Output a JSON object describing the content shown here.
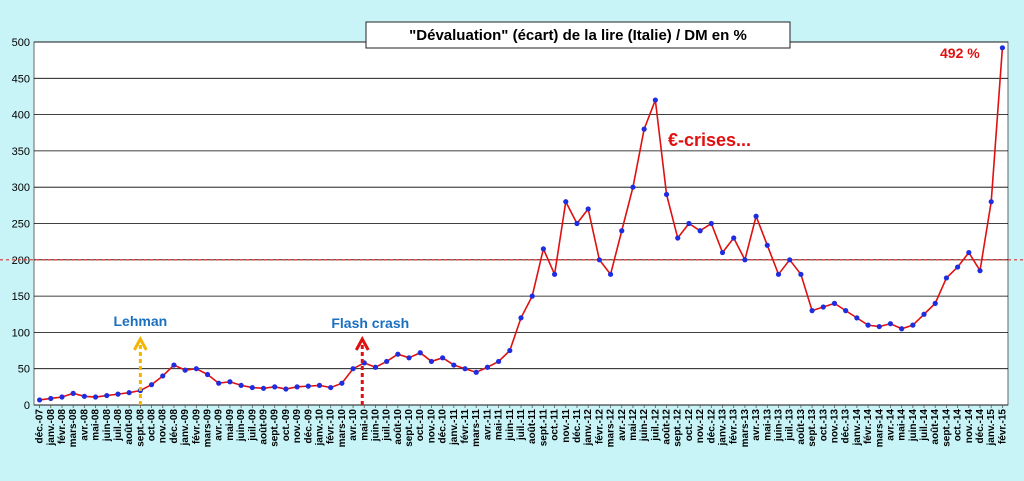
{
  "chart_data": {
    "type": "line",
    "title": "\"Dévaluation\"  (écart) de la lire (Italie)  / DM en %",
    "xlabel": "",
    "ylabel": "",
    "ylim": [
      0,
      500
    ],
    "yticks": [
      0,
      50,
      100,
      150,
      200,
      250,
      300,
      350,
      400,
      450,
      500
    ],
    "grid": true,
    "legend": "none",
    "x_tick_labels": [
      "déc.-07",
      "janv.-08",
      "févr.-08",
      "mars-08",
      "avr.-08",
      "mai-08",
      "juin-08",
      "juil.-08",
      "août-08",
      "sept.-08",
      "oct.-08",
      "nov.-08",
      "déc.-08",
      "janv.-09",
      "févr.-09",
      "mars-09",
      "avr.-09",
      "mai-09",
      "juin-09",
      "juil.-09",
      "août-09",
      "sept.-09",
      "oct.-09",
      "nov.-09",
      "déc.-09",
      "janv.-10",
      "févr.-10",
      "mars-10",
      "avr.-10",
      "mai-10",
      "juin-10",
      "juil.-10",
      "août-10",
      "sept.-10",
      "oct.-10",
      "nov.-10",
      "déc.-10",
      "janv.-11",
      "févr.-11",
      "mars-11",
      "avr.-11",
      "mai-11",
      "juin-11",
      "juil.-11",
      "août-11",
      "sept.-11",
      "oct.-11",
      "nov.-11",
      "déc.-11",
      "janv.-12",
      "févr.-12",
      "mars-12",
      "avr.-12",
      "mai-12",
      "juin-12",
      "juil.-12",
      "août-12",
      "sept.-12",
      "oct.-12",
      "nov.-12",
      "déc.-12",
      "janv.-13",
      "févr.-13",
      "mars-13",
      "avr.-13",
      "mai-13",
      "juin-13",
      "juil.-13",
      "août-13",
      "sept.-13",
      "oct.-13",
      "nov.-13",
      "déc.-13",
      "janv.-14",
      "févr.-14",
      "mars-14",
      "avr.-14",
      "mai-14",
      "juin-14",
      "juil.-14",
      "août-14",
      "sept.-14",
      "oct.-14",
      "nov.-14",
      "déc.-14",
      "janv.-15",
      "févr.-15"
    ],
    "series": [
      {
        "color": "#1f2de0",
        "line_color": "#e01010",
        "x": [
          "2007-12",
          "2008-01",
          "2008-02",
          "2008-03",
          "2008-04",
          "2008-05",
          "2008-06",
          "2008-07",
          "2008-08",
          "2008-09",
          "2008-10",
          "2008-11",
          "2008-12",
          "2009-01",
          "2009-02",
          "2009-03",
          "2009-04",
          "2009-05",
          "2009-06",
          "2009-07",
          "2009-08",
          "2009-09",
          "2009-10",
          "2009-11",
          "2009-12",
          "2010-01",
          "2010-02",
          "2010-03",
          "2010-04",
          "2010-05",
          "2010-06",
          "2010-07",
          "2010-08",
          "2010-09",
          "2010-10",
          "2010-11",
          "2010-12",
          "2011-01",
          "2011-02",
          "2011-03",
          "2011-04",
          "2011-05",
          "2011-06",
          "2011-07",
          "2011-08",
          "2011-09",
          "2011-10",
          "2011-11",
          "2011-12",
          "2012-01",
          "2012-02",
          "2012-03",
          "2012-04",
          "2012-05",
          "2012-06",
          "2012-07",
          "2012-08",
          "2012-09",
          "2012-10",
          "2012-11",
          "2012-12",
          "2013-01",
          "2013-02",
          "2013-03",
          "2013-04",
          "2013-05",
          "2013-06",
          "2013-07",
          "2013-08",
          "2013-09",
          "2013-10",
          "2013-11",
          "2013-12",
          "2014-01",
          "2014-02",
          "2014-03",
          "2014-04",
          "2014-05",
          "2014-06",
          "2014-07",
          "2014-08",
          "2014-09",
          "2014-10",
          "2014-11",
          "2014-12",
          "2015-01",
          "2015-02"
        ],
        "values": [
          7,
          9,
          11,
          16,
          12,
          11,
          13,
          15,
          17,
          20,
          28,
          40,
          55,
          48,
          50,
          42,
          30,
          32,
          27,
          24,
          23,
          25,
          22,
          25,
          26,
          27,
          24,
          30,
          50,
          58,
          52,
          60,
          70,
          65,
          72,
          60,
          65,
          55,
          50,
          45,
          52,
          60,
          75,
          120,
          150,
          215,
          180,
          280,
          250,
          270,
          200,
          180,
          240,
          300,
          380,
          420,
          290,
          230,
          250,
          240,
          250,
          210,
          230,
          200,
          260,
          220,
          180,
          200,
          180,
          130,
          135,
          140,
          130,
          120,
          110,
          108,
          112,
          105,
          110,
          125,
          140,
          175,
          190,
          210,
          185,
          280,
          492
        ]
      }
    ],
    "annotations": [
      {
        "text": "Lehman",
        "at": "2008-09",
        "color": "#1a6fc0",
        "arrow_color": "#f5b400"
      },
      {
        "text": "Flash crash",
        "at": "2010-05",
        "color": "#1a6fc0",
        "arrow_color": "#e01010"
      },
      {
        "text": "€-crises...",
        "at": "2012-07",
        "color": "#e01010"
      },
      {
        "text": "492 %",
        "at": "2015-02",
        "color": "#e01010"
      }
    ],
    "reference_lines": [
      {
        "y": 200,
        "color": "#e03030",
        "style": "dashed"
      }
    ]
  }
}
